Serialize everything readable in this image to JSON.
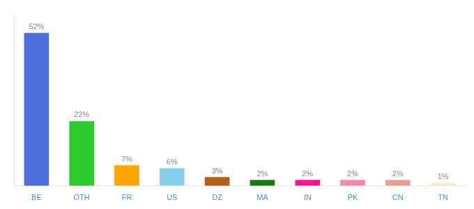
{
  "chart_data": {
    "type": "bar",
    "categories": [
      "BE",
      "OTH",
      "FR",
      "US",
      "DZ",
      "MA",
      "IN",
      "PK",
      "CN",
      "TN"
    ],
    "values": [
      52,
      22,
      7,
      6,
      3,
      2,
      2,
      2,
      2,
      1
    ],
    "value_labels": [
      "52%",
      "22%",
      "7%",
      "6%",
      "3%",
      "2%",
      "2%",
      "2%",
      "2%",
      "1%"
    ],
    "colors": [
      "#4a6fdc",
      "#2ecc2e",
      "#ffa500",
      "#87ceeb",
      "#b85c1a",
      "#1a7a1a",
      "#ff1493",
      "#ff88aa",
      "#e8a090",
      "#f0ecd0"
    ],
    "ylim": [
      0,
      58
    ],
    "grid": false,
    "tick_labels": "x",
    "data_labels": true
  }
}
